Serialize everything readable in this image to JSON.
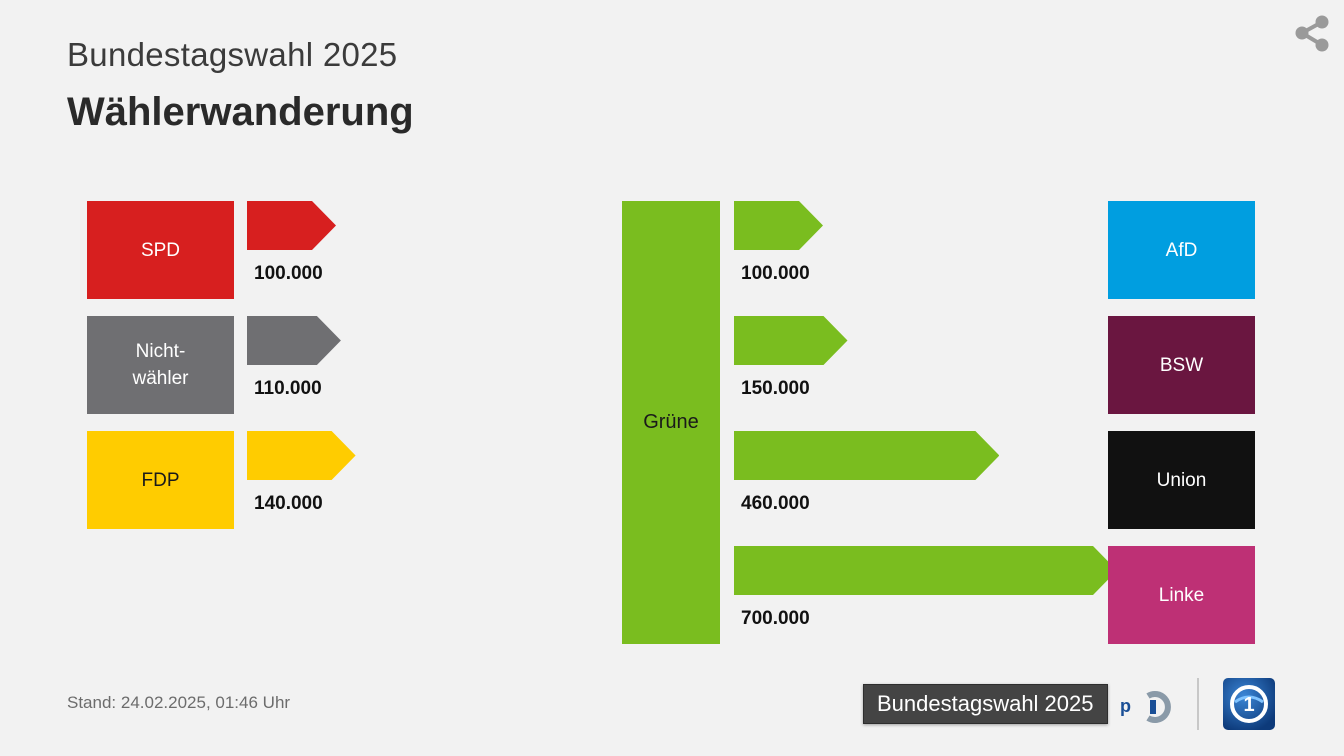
{
  "header": {
    "subtitle": "Bundestagswahl 2025",
    "title": "Wählerwanderung"
  },
  "icons": {
    "share": "share-icon",
    "ard": "ard-one-logo-icon",
    "partial": "ard-small-logo-icon"
  },
  "footer": {
    "stand": "Stand:  24.02.2025, 01:46 Uhr",
    "tooltip": "Bundestagswahl 2025"
  },
  "chart_data": {
    "type": "bar",
    "center_party": {
      "name": "Grüne",
      "color": "#7abd1f"
    },
    "inflows": {
      "categories": [
        "SPD",
        "Nicht-\nwähler",
        "FDP"
      ],
      "values": [
        100000,
        110000,
        140000
      ],
      "labels": [
        "100.000",
        "110.000",
        "140.000"
      ],
      "colors": [
        "#d71f1f",
        "#6f6f72",
        "#ffcc00"
      ]
    },
    "outflows": {
      "categories": [
        "AfD",
        "BSW",
        "Union",
        "Linke"
      ],
      "values": [
        100000,
        150000,
        460000,
        700000
      ],
      "labels": [
        "100.000",
        "150.000",
        "460.000",
        "700.000"
      ],
      "colors": [
        "#009ee0",
        "#6a1640",
        "#111111",
        "#be3075"
      ]
    }
  }
}
